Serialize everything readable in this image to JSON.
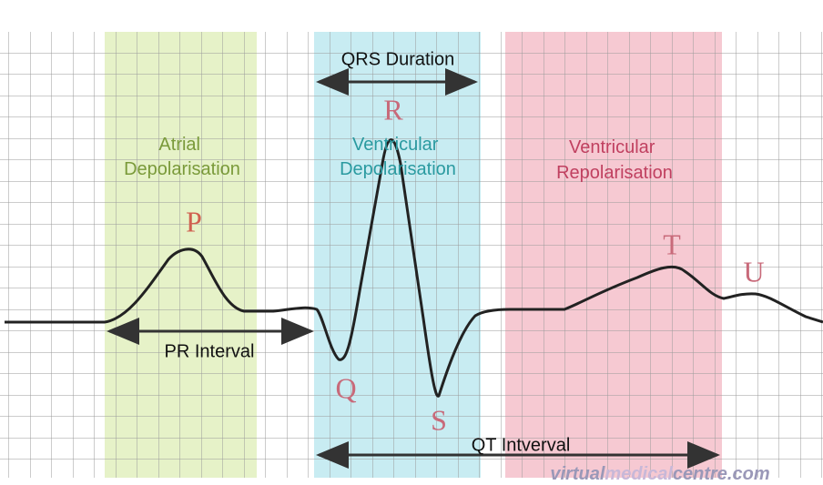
{
  "duration": {
    "label": "QRS Duration"
  },
  "regions": [
    {
      "lines": [
        "Atrial",
        "Depolarisation"
      ]
    },
    {
      "lines": [
        "Ventricular",
        "Depolarisation"
      ]
    },
    {
      "lines": [
        "Ventricular",
        "Repolarisation"
      ]
    }
  ],
  "waves": {
    "P": "P",
    "Q": "Q",
    "R": "R",
    "S": "S",
    "T": "T",
    "U": "U"
  },
  "intervals": {
    "pr": "PR Interval",
    "qt": "QT Intverval"
  },
  "watermark": {
    "part1": "virtual",
    "part2": "medical",
    "part3": "centre.com"
  }
}
